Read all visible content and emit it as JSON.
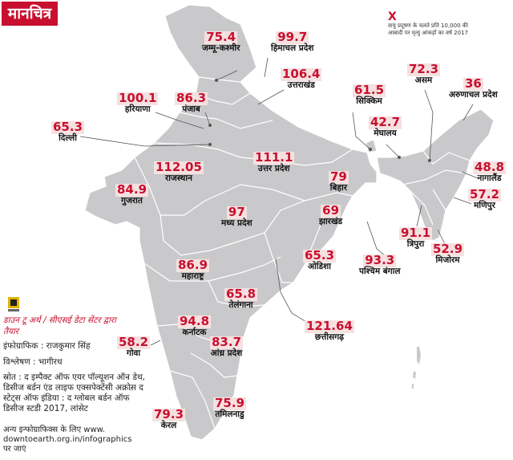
{
  "header": {
    "title": "मानचित्र"
  },
  "legend": {
    "mark": "X",
    "text": "वायु प्रदूषण के चलते प्रति 10,000 की आबादी पर मृत्यु आंकड़ों का वर्ष 2017"
  },
  "states": [
    {
      "value": "75.4",
      "name": "जम्मू-कश्मीर"
    },
    {
      "value": "99.7",
      "name": "हिमाचल प्रदेश"
    },
    {
      "value": "106.4",
      "name": "उत्तराखंड"
    },
    {
      "value": "100.1",
      "name": "हरियाणा"
    },
    {
      "value": "86.3",
      "name": "पंजाब"
    },
    {
      "value": "65.3",
      "name": "दिल्ली"
    },
    {
      "value": "111.1",
      "name": "उत्तर प्रदेश"
    },
    {
      "value": "112.05",
      "name": "राजस्थान"
    },
    {
      "value": "79",
      "name": "बिहार"
    },
    {
      "value": "84.9",
      "name": "गुजरात"
    },
    {
      "value": "97",
      "name": "मध्य प्रदेश"
    },
    {
      "value": "69",
      "name": "झारखंड"
    },
    {
      "value": "86.9",
      "name": "महाराष्ट्र"
    },
    {
      "value": "65.3",
      "name": "ओडिशा"
    },
    {
      "value": "93.3",
      "name": "पश्चिम बंगाल"
    },
    {
      "value": "65.8",
      "name": "तेलंगाना"
    },
    {
      "value": "121.64",
      "name": "छत्तीसगढ़"
    },
    {
      "value": "94.8",
      "name": "कर्नाटक"
    },
    {
      "value": "58.2",
      "name": "गोवा"
    },
    {
      "value": "83.7",
      "name": "आंध्र प्रदेश"
    },
    {
      "value": "79.3",
      "name": "केरल"
    },
    {
      "value": "75.9",
      "name": "तमिलनाडु"
    },
    {
      "value": "61.5",
      "name": "सिक्किम"
    },
    {
      "value": "72.3",
      "name": "असम"
    },
    {
      "value": "36",
      "name": "अरुणाचल प्रदेश"
    },
    {
      "value": "42.7",
      "name": "मेघालय"
    },
    {
      "value": "48.8",
      "name": "नागालैंड"
    },
    {
      "value": "57.2",
      "name": "मणिपुर"
    },
    {
      "value": "91.1",
      "name": "त्रिपुरा"
    },
    {
      "value": "52.9",
      "name": "मिजोरम"
    }
  ],
  "credits": {
    "prepared_by": "डाउन टू अर्थ / सीएसई डेटा सेंटर द्वारा तैयार",
    "infographic": "इंफोग्राफिक : राजकुमार सिंह",
    "analysis": "विश्लेषण : भागीरथ",
    "source": "स्रोत : द इम्पैक्ट ऑफ एयर पॉल्यूशन ऑन डेथ, डिसीज बर्डन एंड लाइफ एक्सपेक्टेंसी अक्रोस द स्टेट्स ऑफ इंडिया : द ग्लोबल बर्डन ऑफ डिसीज स्टडी 2017, लांसेट",
    "more": "अन्य इन्फोग्राफिक्स के लिए www. downtoearth.org.in/infographics पर जाएं"
  },
  "colors": {
    "accent": "#c8102e",
    "map_fill": "#c9c9cb",
    "value_bg": "#f6e0e0"
  }
}
